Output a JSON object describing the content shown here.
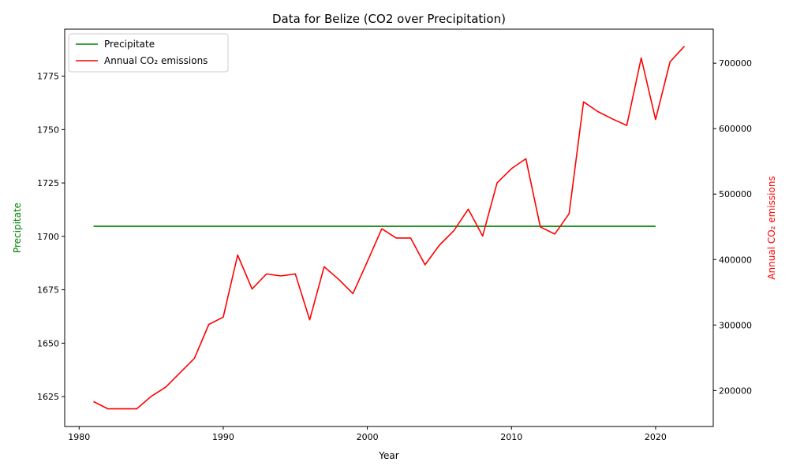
{
  "chart_data": {
    "type": "line",
    "title": "Data for Belize (CO2 over Precipitation)",
    "xlabel": "Year",
    "ylabel_left": "Precipitate",
    "ylabel_right": "Annual CO₂ emissions",
    "xlim": [
      1979,
      2024
    ],
    "ylim_left": [
      1611,
      1797
    ],
    "ylim_right": [
      145000,
      752000
    ],
    "x_ticks": [
      1980,
      1990,
      2000,
      2010,
      2020
    ],
    "y_ticks_left": [
      1625,
      1650,
      1675,
      1700,
      1725,
      1750,
      1775
    ],
    "y_ticks_right": [
      200000,
      300000,
      400000,
      500000,
      600000,
      700000
    ],
    "grid": false,
    "legend_position": "top-left",
    "colors": {
      "left_axis": "#008000",
      "right_axis": "#ff0000"
    },
    "series": [
      {
        "name": "Precipitate",
        "axis": "left",
        "color": "#008000",
        "x": [
          1981,
          2020
        ],
        "values": [
          1704.7,
          1704.7
        ]
      },
      {
        "name": "Annual CO₂ emissions",
        "axis": "right",
        "color": "#ff0000",
        "x": [
          1981,
          1982,
          1983,
          1984,
          1985,
          1986,
          1987,
          1988,
          1989,
          1990,
          1991,
          1992,
          1993,
          1994,
          1995,
          1996,
          1997,
          1998,
          1999,
          2000,
          2001,
          2002,
          2003,
          2004,
          2005,
          2006,
          2007,
          2008,
          2009,
          2010,
          2011,
          2012,
          2013,
          2014,
          2015,
          2016,
          2017,
          2018,
          2019,
          2020,
          2021,
          2022
        ],
        "values": [
          183000,
          172000,
          172000,
          172000,
          191000,
          205000,
          227000,
          249000,
          301000,
          312000,
          407000,
          355000,
          378000,
          375000,
          378000,
          308000,
          389000,
          370000,
          348000,
          397000,
          447000,
          433000,
          433000,
          392000,
          422000,
          444000,
          477000,
          436000,
          517000,
          539000,
          554000,
          450000,
          439000,
          470000,
          641000,
          626000,
          615000,
          605000,
          708000,
          614000,
          702000,
          726000
        ]
      }
    ]
  }
}
